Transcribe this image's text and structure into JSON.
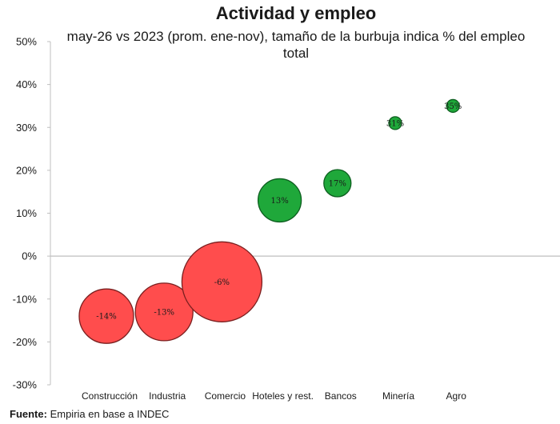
{
  "chart_data": {
    "type": "scatter",
    "title": "Actividad y empleo",
    "subtitle": "may-26 vs 2023 (prom. ene-nov), tamaño de la burbuja indica % del empleo total",
    "xlabel": "",
    "ylabel": "",
    "ylim": [
      -30,
      50
    ],
    "y_ticks": [
      "50%",
      "40%",
      "30%",
      "20%",
      "10%",
      "0%",
      "-10%",
      "-20%",
      "-30%"
    ],
    "grid": false,
    "categories": [
      "Construcción",
      "Industria",
      "Comercio",
      "Hoteles y rest.",
      "Bancos",
      "Minería",
      "Agro"
    ],
    "values": [
      -14,
      -13,
      -6,
      13,
      17,
      31,
      35
    ],
    "data_labels": [
      "-14%",
      "-13%",
      "-6%",
      "13%",
      "17%",
      "31%",
      "35%"
    ],
    "bubble_sizes": [
      34,
      36,
      50,
      27,
      17,
      8,
      8
    ],
    "colors": {
      "negative": "#ff4d4d",
      "positive": "#1fa83a",
      "outline_negative": "#7a1f1f",
      "outline_positive": "#0d5e1f",
      "axis": "#bfbfbf"
    }
  },
  "source": {
    "label": "Fuente:",
    "text": "Empiria en base a INDEC"
  }
}
